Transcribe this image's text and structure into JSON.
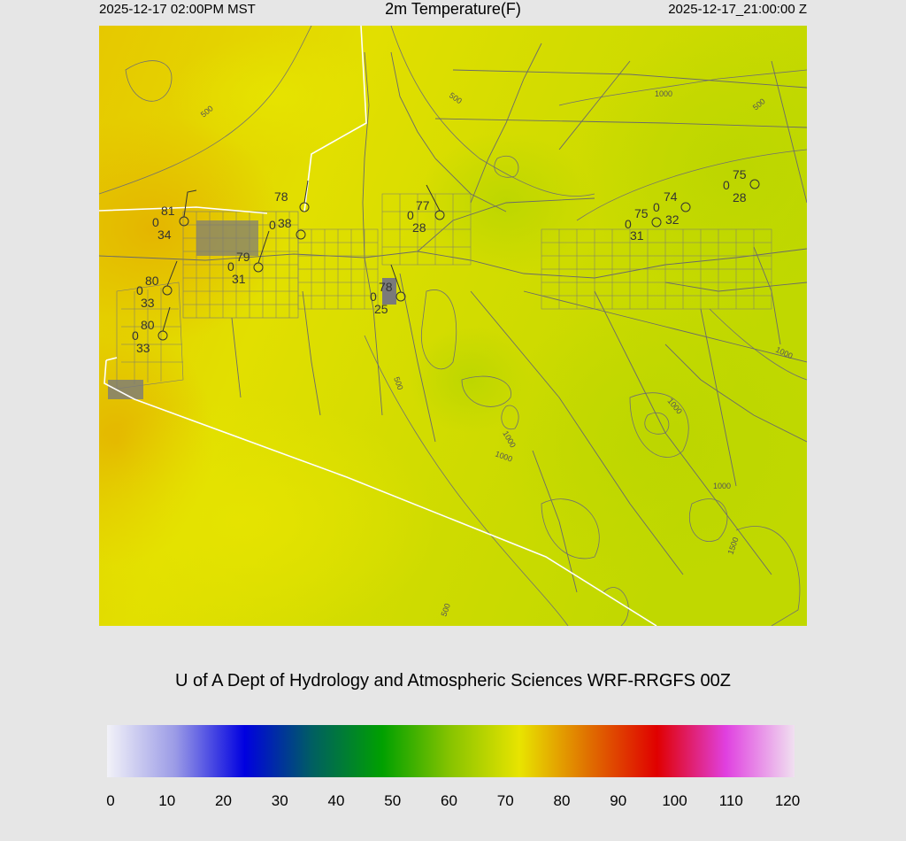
{
  "header": {
    "local_time": "2025-12-17 02:00PM MST",
    "title": "2m Temperature(F)",
    "valid_time": "2025-12-17_21:00:00 Z"
  },
  "credit": "U of A Dept of Hydrology and Atmospheric Sciences WRF-RRGFS 00Z",
  "colorbar": {
    "ticks": [
      "0",
      "10",
      "20",
      "30",
      "40",
      "50",
      "60",
      "70",
      "80",
      "90",
      "100",
      "110",
      "120"
    ],
    "range": [
      0,
      120
    ],
    "colors": [
      "#f2f2f8",
      "#9a9ae6",
      "#0000e0",
      "#006060",
      "#00a000",
      "#88c400",
      "#e8e400",
      "#e07000",
      "#e00000",
      "#e040e0",
      "#f0e0f0"
    ]
  },
  "map": {
    "field_colors": {
      "warm": "#e4b200",
      "yellow": "#e3e100",
      "green": "#c4d800",
      "road": "#6a6a6a",
      "border": "#ffffff",
      "contour": "#707070"
    },
    "contour_labels": [
      "500",
      "500",
      "1000",
      "500",
      "500",
      "1000",
      "1000",
      "1000",
      "1000",
      "1500",
      "500"
    ],
    "stations": [
      {
        "temp": "81",
        "gust": "0",
        "dew": "34"
      },
      {
        "temp": "78",
        "gust": "0",
        "dew": "38"
      },
      {
        "temp": "79",
        "gust": "0",
        "dew": "31"
      },
      {
        "temp": "80",
        "gust": "0",
        "dew": "33"
      },
      {
        "temp": "80",
        "gust": "0",
        "dew": "33"
      },
      {
        "temp": "77",
        "gust": "0",
        "dew": "28"
      },
      {
        "temp": "78",
        "gust": "0",
        "dew": "25"
      },
      {
        "temp": "75",
        "gust": "0",
        "dew": "31"
      },
      {
        "temp": "74",
        "gust": "0",
        "dew": "32"
      },
      {
        "temp": "75",
        "gust": "0",
        "dew": "28"
      }
    ]
  }
}
